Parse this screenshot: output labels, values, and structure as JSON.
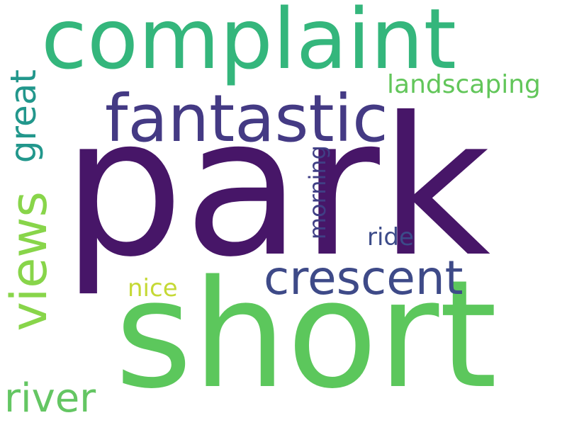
{
  "words": {
    "park": {
      "text": "park",
      "color": "#471668"
    },
    "short": {
      "text": "short",
      "color": "#5cc75c"
    },
    "complaint": {
      "text": "complaint",
      "color": "#34b67c"
    },
    "fantastic": {
      "text": "fantastic",
      "color": "#443a84"
    },
    "crescent": {
      "text": "crescent",
      "color": "#3e4a88"
    },
    "landscaping": {
      "text": "landscaping",
      "color": "#62c65a"
    },
    "river": {
      "text": "river",
      "color": "#64c663"
    },
    "nice": {
      "text": "nice",
      "color": "#c5d935"
    },
    "ride": {
      "text": "ride",
      "color": "#3c4b89"
    },
    "great": {
      "text": "great",
      "color": "#22978c"
    },
    "views": {
      "text": "views",
      "color": "#88d54a"
    },
    "morning": {
      "text": "morning",
      "color": "#403f85"
    }
  }
}
